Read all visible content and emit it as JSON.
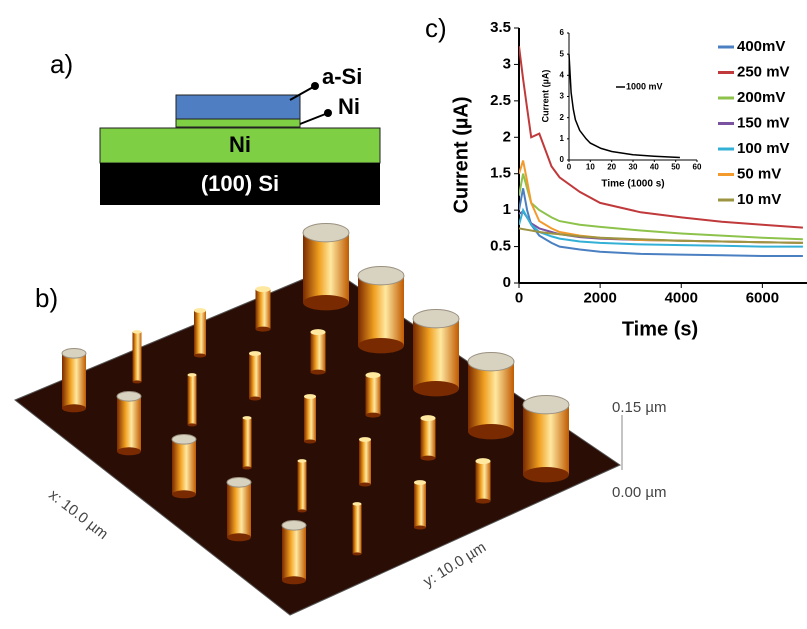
{
  "panel_a": {
    "label": "a)",
    "callout_top": "a-Si",
    "callout_thin": "Ni",
    "layer_base": "Ni",
    "layer_substrate": "(100) Si"
  },
  "panel_b": {
    "label": "b)",
    "z_top": "0.15 µm",
    "z_bottom": "0.00 µm",
    "x_label": "x: 10.0 µm",
    "y_label": "y: 10.0 µm"
  },
  "chart_data": [
    {
      "type": "line",
      "panel_label": "c)",
      "x_label": "Time (s)",
      "y_label": "Current (µA)",
      "x": [
        0,
        100,
        200,
        300,
        500,
        800,
        1000,
        1500,
        2000,
        3000,
        4000,
        5000,
        6000,
        7000
      ],
      "xlim": [
        0,
        7100
      ],
      "xticks": [
        0,
        2000,
        4000,
        6000
      ],
      "ylim": [
        0,
        3.5
      ],
      "yticks": [
        0,
        0.5,
        1,
        1.5,
        2,
        2.5,
        3,
        3.5
      ],
      "series": [
        {
          "name": "400mV",
          "color": "#4a7fc1",
          "values": [
            1.0,
            1.3,
            1.0,
            0.8,
            0.65,
            0.55,
            0.5,
            0.46,
            0.43,
            0.4,
            0.39,
            0.38,
            0.37,
            0.37
          ]
        },
        {
          "name": "250 mV",
          "color": "#c0393b",
          "values": [
            3.25,
            2.8,
            2.4,
            2.0,
            2.05,
            1.6,
            1.45,
            1.25,
            1.1,
            0.97,
            0.9,
            0.84,
            0.8,
            0.76
          ]
        },
        {
          "name": "200mV",
          "color": "#8dc24b",
          "values": [
            1.2,
            1.5,
            1.3,
            1.1,
            1.0,
            0.9,
            0.85,
            0.8,
            0.77,
            0.72,
            0.68,
            0.65,
            0.62,
            0.6
          ]
        },
        {
          "name": "150 mV",
          "color": "#7a52a0",
          "values": [
            0.95,
            0.98,
            0.9,
            0.82,
            0.75,
            0.7,
            0.67,
            0.63,
            0.61,
            0.59,
            0.58,
            0.57,
            0.56,
            0.55
          ]
        },
        {
          "name": "100 mV",
          "color": "#33b0d6",
          "values": [
            0.8,
            1.0,
            0.9,
            0.8,
            0.7,
            0.64,
            0.61,
            0.57,
            0.55,
            0.53,
            0.52,
            0.51,
            0.5,
            0.5
          ]
        },
        {
          "name": "50 mV",
          "color": "#f39a2d",
          "values": [
            1.5,
            1.68,
            1.4,
            1.1,
            0.85,
            0.75,
            0.7,
            0.65,
            0.62,
            0.59,
            0.58,
            0.57,
            0.56,
            0.55
          ]
        },
        {
          "name": "10 mV",
          "color": "#9c9442",
          "values": [
            0.75,
            0.74,
            0.73,
            0.72,
            0.7,
            0.68,
            0.67,
            0.64,
            0.62,
            0.6,
            0.58,
            0.57,
            0.56,
            0.55
          ]
        }
      ]
    },
    {
      "type": "line",
      "x_label": "Time (1000 s)",
      "y_label": "Current (µA)",
      "x": [
        0,
        1,
        2,
        3,
        5,
        8,
        10,
        15,
        20,
        30,
        40,
        52
      ],
      "xlim": [
        0,
        60
      ],
      "xticks": [
        0,
        10,
        20,
        30,
        40,
        50,
        60
      ],
      "ylim": [
        0,
        6
      ],
      "yticks": [
        0,
        1,
        2,
        3,
        4,
        5,
        6
      ],
      "series": [
        {
          "name": "1000 mV",
          "color": "#000000",
          "values": [
            5,
            3.2,
            2.4,
            1.9,
            1.4,
            1.0,
            0.8,
            0.55,
            0.4,
            0.25,
            0.18,
            0.12
          ]
        }
      ]
    }
  ]
}
